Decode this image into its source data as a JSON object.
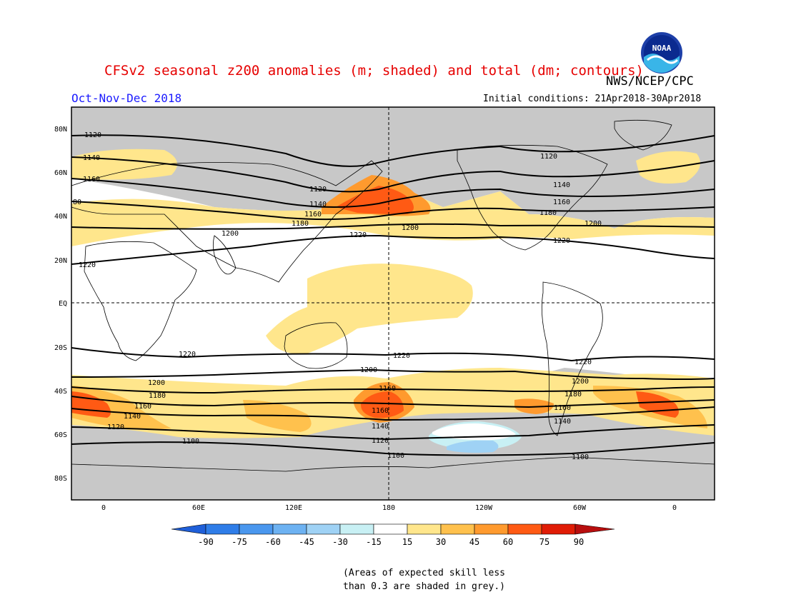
{
  "header": {
    "title": "CFSv2 seasonal z200 anomalies (m; shaded) and total (dm; contours)",
    "org": "NWS/NCEP/CPC",
    "season": "Oct-Nov-Dec 2018",
    "initial_conditions": "Initial conditions: 21Apr2018-30Apr2018",
    "logo_text": "NOAA"
  },
  "map": {
    "lat_labels": [
      "80N",
      "60N",
      "40N",
      "20N",
      "EQ",
      "20S",
      "40S",
      "60S",
      "80S"
    ],
    "lon_labels": [
      "0",
      "60E",
      "120E",
      "180",
      "120W",
      "60W",
      "0"
    ],
    "contour_labels": [
      "1120",
      "1140",
      "1160",
      "1180",
      "80",
      "1200",
      "1220",
      "1220",
      "1200",
      "1200",
      "1120",
      "1140",
      "1160",
      "1180",
      "1200",
      "1220",
      "1220",
      "1220",
      "1200",
      "1200",
      "1180",
      "1160",
      "1140",
      "1120",
      "1100",
      "1160",
      "1160",
      "1140",
      "1120",
      "1100",
      "1180",
      "1160",
      "1140",
      "1100",
      "1200",
      "1220"
    ]
  },
  "colorbar": {
    "tick_labels": [
      "-90",
      "-75",
      "-60",
      "-45",
      "-30",
      "-15",
      "15",
      "30",
      "45",
      "60",
      "75",
      "90"
    ],
    "colors": [
      "#1f5fd9",
      "#2f7de8",
      "#4a97ee",
      "#6db2f2",
      "#9fd2f5",
      "#c8f0f4",
      "#ffffff",
      "#ffe68c",
      "#ffc14d",
      "#ff9a2e",
      "#ff5a14",
      "#e01c06",
      "#b80e0e"
    ]
  },
  "note": {
    "line1": "(Areas of expected skill less",
    "line2": "than 0.3 are shaded in grey.)"
  },
  "colors": {
    "grey": "#c8c8c8",
    "yellow": "#ffe68c",
    "orange": "#ffc14d",
    "dark_orange": "#ff9a2e",
    "red_orange": "#ff5a14",
    "light_blue": "#9fd2f5",
    "pale_blue": "#c8f0f4",
    "title_red": "#e60000",
    "season_blue": "#1a1aff"
  }
}
